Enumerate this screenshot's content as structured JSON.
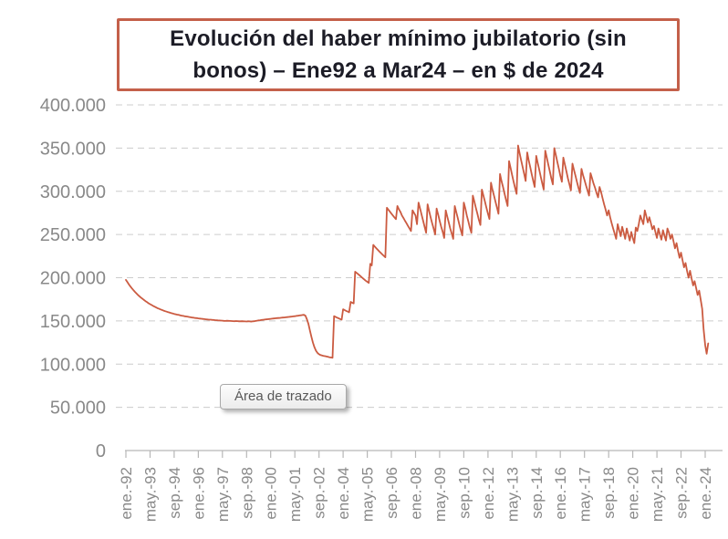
{
  "colors": {
    "line": "#CB5B41",
    "title_border": "#C4604A",
    "title_text": "#1c1c26",
    "gridline": "#cccccc",
    "axis_line": "#b7b7b7",
    "axis_text": "#898989",
    "tooltip_text": "#595959",
    "background": "#ffffff"
  },
  "chart_data": {
    "type": "line",
    "title": "Evolución del haber mínimo jubilatorio (sin bonos) – Ene92 a Mar24 – en $ de 2024",
    "title_lines": [
      "Evolución del haber mínimo jubilatorio (sin",
      "bonos) – Ene92 a Mar24 – en $ de 2024"
    ],
    "tooltip": "Área de trazado",
    "grid": "horizontal-dashed",
    "legend": "none",
    "ylim": [
      0,
      400000
    ],
    "y_gridline_step": 50000,
    "y_tick_labels": [
      "0",
      "50.000",
      "100.000",
      "150.000",
      "200.000",
      "250.000",
      "300.000",
      "350.000",
      "400.000"
    ],
    "x_tick_interval_months": 16,
    "x_tick_labels": [
      "ene.-92",
      "may.-93",
      "sep.-94",
      "ene.-96",
      "may.-97",
      "sep.-98",
      "ene.-00",
      "may.-01",
      "sep.-02",
      "ene.-04",
      "may.-05",
      "sep.-06",
      "ene.-08",
      "may.-09",
      "sep.-10",
      "ene.-12",
      "may.-13",
      "sep.-14",
      "ene.-16",
      "may.-17",
      "sep.-18",
      "ene.-20",
      "may.-21",
      "sep.-22",
      "ene.-24"
    ],
    "x_range": "ene-92 a mar-24 (mensual, 387 puntos)",
    "line_color": "#CB5B41",
    "series": [
      {
        "name": "serie",
        "unit": "miles de $ de 2024",
        "monthly_values_thousands": [
          197.5,
          194.8,
          192.2,
          189.8,
          187.6,
          185.5,
          183.6,
          181.8,
          180.1,
          178.5,
          177.0,
          175.6,
          174.2,
          172.9,
          171.7,
          170.5,
          169.4,
          168.4,
          167.4,
          166.5,
          165.6,
          164.8,
          164.0,
          163.3,
          162.6,
          161.9,
          161.3,
          160.7,
          160.1,
          159.6,
          159.1,
          158.6,
          158.1,
          157.7,
          157.3,
          156.9,
          156.5,
          156.1,
          155.8,
          155.4,
          155.1,
          154.8,
          154.5,
          154.2,
          153.9,
          153.7,
          153.4,
          153.2,
          152.9,
          152.7,
          152.5,
          152.3,
          152.1,
          151.9,
          151.7,
          151.5,
          151.4,
          151.2,
          151.1,
          150.9,
          150.8,
          150.6,
          150.5,
          150.4,
          150.3,
          150.1,
          150.0,
          150.2,
          150.1,
          150.0,
          149.9,
          149.8,
          149.7,
          149.9,
          149.8,
          149.6,
          149.5,
          149.7,
          149.6,
          149.4,
          149.3,
          149.5,
          149.4,
          149.2,
          149.4,
          149.7,
          150.0,
          150.3,
          150.6,
          150.8,
          151.1,
          151.3,
          151.6,
          151.8,
          152.0,
          152.2,
          152.4,
          152.6,
          152.8,
          153.0,
          153.2,
          153.4,
          153.5,
          153.7,
          153.9,
          154.0,
          154.2,
          154.4,
          154.6,
          154.8,
          155.0,
          155.3,
          155.5,
          155.8,
          156.0,
          156.3,
          156.5,
          156.8,
          157.0,
          156.0,
          152.0,
          146.5,
          139.0,
          131.5,
          125.0,
          119.5,
          115.5,
          113.0,
          111.5,
          110.5,
          110.0,
          109.6,
          109.2,
          108.8,
          108.4,
          108.0,
          107.6,
          107.3,
          155.5,
          154.6,
          153.8,
          153.0,
          152.2,
          151.5,
          163.5,
          162.5,
          161.6,
          160.8,
          160.0,
          172.0,
          171.0,
          170.2,
          207.0,
          205.5,
          204.0,
          202.5,
          201.0,
          199.5,
          198.0,
          196.5,
          195.2,
          194.0,
          216.0,
          214.3,
          238.0,
          236.0,
          234.1,
          232.2,
          230.4,
          228.6,
          226.9,
          225.2,
          223.6,
          281.0,
          278.7,
          276.4,
          274.2,
          272.0,
          269.9,
          267.8,
          283.0,
          279.0,
          276.0,
          272.0,
          269.0,
          266.0,
          263.0,
          260.0,
          257.0,
          254.0,
          278.0,
          275.0,
          272.0,
          262.0,
          287.0,
          280.0,
          273.0,
          266.0,
          259.0,
          252.0,
          285.0,
          277.0,
          270.0,
          263.0,
          257.0,
          250.0,
          280.0,
          273.0,
          266.0,
          259.0,
          253.0,
          246.0,
          278.0,
          271.0,
          264.0,
          257.0,
          251.0,
          245.0,
          283.0,
          276.0,
          269.0,
          262.0,
          255.0,
          249.0,
          287.0,
          280.0,
          272.0,
          265.0,
          258.0,
          252.0,
          295.0,
          288.0,
          281.0,
          274.0,
          267.0,
          261.0,
          302.0,
          295.0,
          288.0,
          281.0,
          274.0,
          268.0,
          310.0,
          302.0,
          295.0,
          288.0,
          281.0,
          274.0,
          320.0,
          312.0,
          305.0,
          297.0,
          290.0,
          283.0,
          335.0,
          327.0,
          319.0,
          311.0,
          304.0,
          297.0,
          353.0,
          344.0,
          336.0,
          328.0,
          320.0,
          312.0,
          345.0,
          336.0,
          328.0,
          320.0,
          312.0,
          305.0,
          341.0,
          333.0,
          325.0,
          317.0,
          309.0,
          302.0,
          347.0,
          339.0,
          331.0,
          323.0,
          315.0,
          308.0,
          350.0,
          342.0,
          334.0,
          326.0,
          318.0,
          311.0,
          339.0,
          331.0,
          323.0,
          315.0,
          308.0,
          301.0,
          332.0,
          325.0,
          318.0,
          311.0,
          304.0,
          298.0,
          326.0,
          319.0,
          313.0,
          307.0,
          301.0,
          295.0,
          321.0,
          315.0,
          309.0,
          304.0,
          298.0,
          293.0,
          305.0,
          299.0,
          292.0,
          285.0,
          279.0,
          272.0,
          278.0,
          270.0,
          263.0,
          257.0,
          251.0,
          245.0,
          262.0,
          255.0,
          248.0,
          259.0,
          252.0,
          245.0,
          257.0,
          250.0,
          243.0,
          253.0,
          246.0,
          240.0,
          258.0,
          254.0,
          262.0,
          272.0,
          267.0,
          262.0,
          278.0,
          271.0,
          264.0,
          270.0,
          263.0,
          256.0,
          260.0,
          253.0,
          246.0,
          257.0,
          250.0,
          244.0,
          255.0,
          249.0,
          243.0,
          257.0,
          252.0,
          245.0,
          250.0,
          242.0,
          234.0,
          240.0,
          231.0,
          223.0,
          229.0,
          220.0,
          212.0,
          217.0,
          208.0,
          200.0,
          208.0,
          199.0,
          191.0,
          196.0,
          188.0,
          180.0,
          185.0,
          175.0,
          164.0,
          140.0,
          122.0,
          112.0,
          124.0
        ]
      }
    ]
  }
}
